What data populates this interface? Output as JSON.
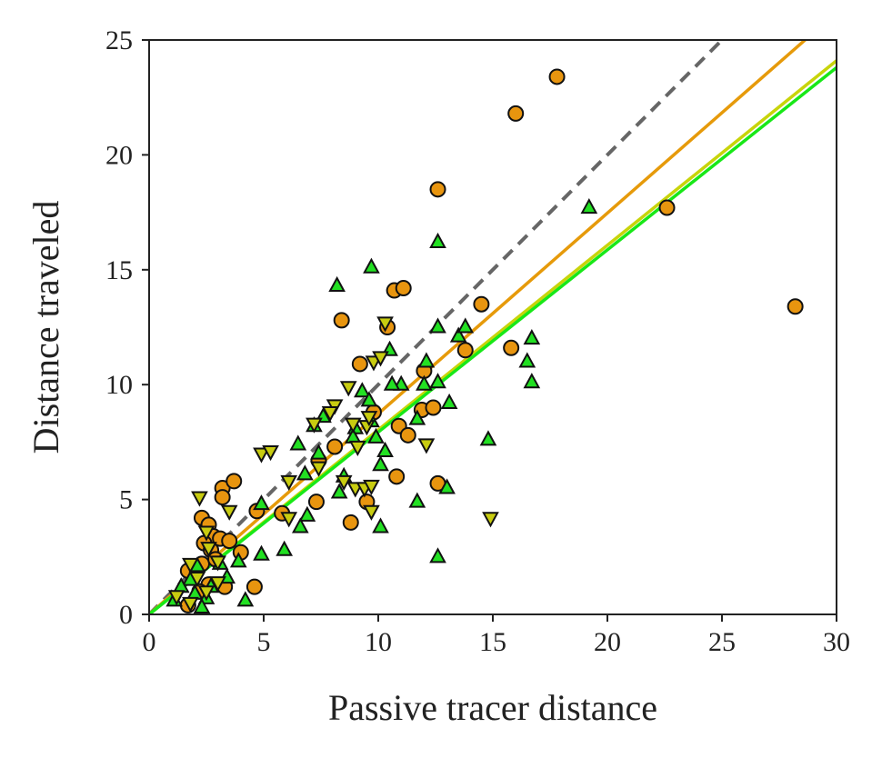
{
  "chart_data": {
    "type": "scatter",
    "title": "",
    "xlabel": "Passive tracer distance",
    "ylabel": "Distance traveled",
    "xlim": [
      0,
      30
    ],
    "ylim": [
      0,
      25
    ],
    "xticks": [
      "0",
      "5",
      "10",
      "15",
      "20",
      "25",
      "30"
    ],
    "yticks": [
      "0",
      "5",
      "10",
      "15",
      "20",
      "25"
    ],
    "grid": false,
    "legend": "none",
    "lines": [
      {
        "style": "dashed",
        "color": "#666666",
        "x": [
          0,
          25
        ],
        "y": [
          0,
          25
        ]
      },
      {
        "style": "solid",
        "color": "#E69A0A",
        "x": [
          0,
          30
        ],
        "y": [
          0,
          26.2
        ]
      },
      {
        "style": "solid",
        "color": "#C8D40A",
        "x": [
          0,
          30
        ],
        "y": [
          0,
          24.1
        ]
      },
      {
        "style": "solid",
        "color": "#18E818",
        "x": [
          0,
          30
        ],
        "y": [
          0,
          23.8
        ]
      }
    ],
    "series": [
      {
        "marker": "circle",
        "color": "#E8950F",
        "points": [
          [
            17.8,
            23.4
          ],
          [
            16.0,
            21.8
          ],
          [
            12.6,
            18.5
          ],
          [
            22.6,
            17.7
          ],
          [
            28.2,
            13.4
          ],
          [
            10.7,
            14.1
          ],
          [
            11.1,
            14.2
          ],
          [
            8.4,
            12.8
          ],
          [
            10.4,
            12.5
          ],
          [
            14.5,
            13.5
          ],
          [
            13.8,
            11.5
          ],
          [
            15.8,
            11.6
          ],
          [
            9.2,
            10.9
          ],
          [
            12.0,
            10.6
          ],
          [
            9.8,
            8.8
          ],
          [
            10.9,
            8.2
          ],
          [
            11.3,
            7.8
          ],
          [
            11.9,
            8.9
          ],
          [
            12.4,
            9.0
          ],
          [
            8.1,
            7.3
          ],
          [
            7.4,
            6.7
          ],
          [
            10.8,
            6.0
          ],
          [
            12.6,
            5.7
          ],
          [
            9.5,
            4.9
          ],
          [
            7.3,
            4.9
          ],
          [
            8.8,
            4.0
          ],
          [
            3.2,
            5.5
          ],
          [
            3.7,
            5.8
          ],
          [
            3.2,
            5.1
          ],
          [
            4.7,
            4.5
          ],
          [
            5.8,
            4.4
          ],
          [
            2.3,
            4.2
          ],
          [
            2.6,
            3.9
          ],
          [
            2.8,
            3.4
          ],
          [
            3.1,
            3.3
          ],
          [
            2.4,
            3.1
          ],
          [
            3.5,
            3.2
          ],
          [
            2.7,
            2.8
          ],
          [
            4.0,
            2.7
          ],
          [
            2.3,
            2.2
          ],
          [
            2.9,
            2.4
          ],
          [
            1.7,
            1.9
          ],
          [
            2.6,
            1.3
          ],
          [
            3.3,
            1.2
          ],
          [
            2.2,
            1.0
          ],
          [
            4.6,
            1.2
          ],
          [
            1.7,
            0.4
          ]
        ]
      },
      {
        "marker": "triangle-up",
        "color": "#22E022",
        "points": [
          [
            19.2,
            17.7
          ],
          [
            12.6,
            16.2
          ],
          [
            9.7,
            15.1
          ],
          [
            8.2,
            14.3
          ],
          [
            13.5,
            12.1
          ],
          [
            13.8,
            12.5
          ],
          [
            12.6,
            12.5
          ],
          [
            16.7,
            12.0
          ],
          [
            16.5,
            11.0
          ],
          [
            16.7,
            10.1
          ],
          [
            10.5,
            11.5
          ],
          [
            12.1,
            11.0
          ],
          [
            11.0,
            10.0
          ],
          [
            12.0,
            10.0
          ],
          [
            12.6,
            10.1
          ],
          [
            10.6,
            10.0
          ],
          [
            9.3,
            9.7
          ],
          [
            9.6,
            9.3
          ],
          [
            13.1,
            9.2
          ],
          [
            11.7,
            8.5
          ],
          [
            9.7,
            8.4
          ],
          [
            9.0,
            8.1
          ],
          [
            7.6,
            8.6
          ],
          [
            7.2,
            8.2
          ],
          [
            8.9,
            7.7
          ],
          [
            9.9,
            7.7
          ],
          [
            10.3,
            7.1
          ],
          [
            6.5,
            7.4
          ],
          [
            7.4,
            7.0
          ],
          [
            6.8,
            6.1
          ],
          [
            8.5,
            6.0
          ],
          [
            10.1,
            6.5
          ],
          [
            14.8,
            7.6
          ],
          [
            13.0,
            5.5
          ],
          [
            11.7,
            4.9
          ],
          [
            8.3,
            5.3
          ],
          [
            6.9,
            4.3
          ],
          [
            6.6,
            3.8
          ],
          [
            10.1,
            3.8
          ],
          [
            12.6,
            2.5
          ],
          [
            5.9,
            2.8
          ],
          [
            4.9,
            4.8
          ],
          [
            4.9,
            2.6
          ],
          [
            3.9,
            2.3
          ],
          [
            3.1,
            2.2
          ],
          [
            2.1,
            2.1
          ],
          [
            3.4,
            1.6
          ],
          [
            1.8,
            1.5
          ],
          [
            2.7,
            1.2
          ],
          [
            2.0,
            0.9
          ],
          [
            4.2,
            0.6
          ],
          [
            1.1,
            0.6
          ],
          [
            1.4,
            1.2
          ],
          [
            2.5,
            0.7
          ],
          [
            2.3,
            0.3
          ]
        ]
      },
      {
        "marker": "triangle-down",
        "color": "#C8CC10",
        "points": [
          [
            10.3,
            12.7
          ],
          [
            9.8,
            11.0
          ],
          [
            10.1,
            11.2
          ],
          [
            8.7,
            9.9
          ],
          [
            7.2,
            8.3
          ],
          [
            8.1,
            9.1
          ],
          [
            7.9,
            8.8
          ],
          [
            9.5,
            8.2
          ],
          [
            9.6,
            8.6
          ],
          [
            8.9,
            8.3
          ],
          [
            12.1,
            7.4
          ],
          [
            9.1,
            7.3
          ],
          [
            7.4,
            6.4
          ],
          [
            6.1,
            5.8
          ],
          [
            8.5,
            5.8
          ],
          [
            9.0,
            5.5
          ],
          [
            9.4,
            5.5
          ],
          [
            9.7,
            5.6
          ],
          [
            14.9,
            4.2
          ],
          [
            9.7,
            4.5
          ],
          [
            4.9,
            7.0
          ],
          [
            5.3,
            7.1
          ],
          [
            2.2,
            5.1
          ],
          [
            3.5,
            4.5
          ],
          [
            6.1,
            4.2
          ],
          [
            2.5,
            3.6
          ],
          [
            2.6,
            2.9
          ],
          [
            1.8,
            2.2
          ],
          [
            3.0,
            2.3
          ],
          [
            2.1,
            1.6
          ],
          [
            3.0,
            1.4
          ],
          [
            2.5,
            1.0
          ],
          [
            1.8,
            0.5
          ],
          [
            1.2,
            0.8
          ]
        ]
      }
    ]
  }
}
